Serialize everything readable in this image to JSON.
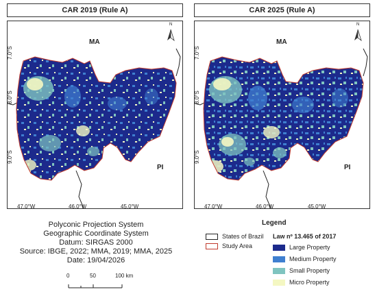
{
  "maps": [
    {
      "title": "CAR 2019 (Rule A)"
    },
    {
      "title": "CAR 2025 (Rule A)"
    }
  ],
  "axes": {
    "lat_labels": [
      "7.0°S",
      "8.0°S",
      "9.0°S"
    ],
    "lon_labels": [
      "47.0°W",
      "46.0°W",
      "45.0°W"
    ]
  },
  "regions": {
    "north": "MA",
    "south": "PI"
  },
  "north_arrow": "N",
  "info": {
    "line1": "Polyconic Projection System",
    "line2": "Geographic Coordinate System",
    "line3": "Datum: SIRGAS 2000",
    "line4": "Source: IBGE, 2022; MMA, 2019; MMA, 2025",
    "line5": "Date: 19/04/2026"
  },
  "scale_bar": {
    "ticks": [
      "0",
      "50",
      "100 km"
    ]
  },
  "legend": {
    "title": "Legend",
    "states": "States of Brazil",
    "study_area": "Study Area",
    "law": "Law nº 13.465 of 2017",
    "large": "Large Property",
    "medium": "Medium Property",
    "small": "Small Property",
    "micro": "Micro Property"
  },
  "colors": {
    "large": "#1c2a8c",
    "medium": "#3f7fd0",
    "small": "#7fc4c0",
    "micro": "#f4f7c2",
    "study_area": "#c0392b",
    "states": "#222222"
  }
}
